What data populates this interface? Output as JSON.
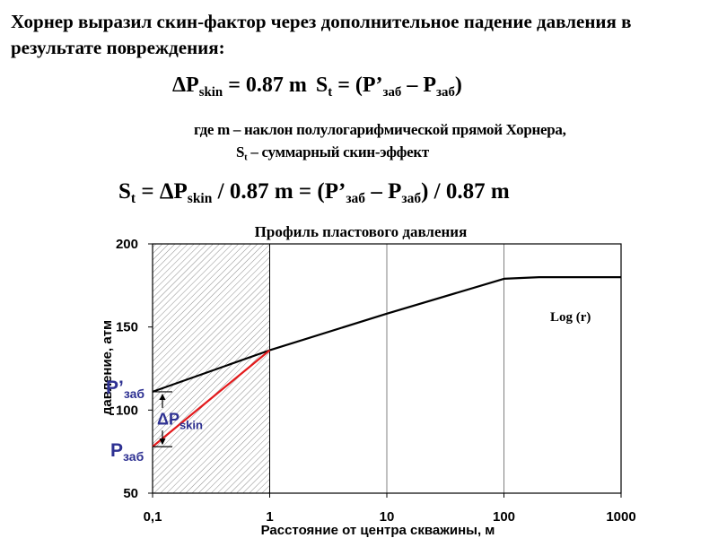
{
  "text": {
    "intro": "Хорнер выразил скин-фактор через дополнительное падение давления в результате повреждения:",
    "eq1": {
      "a": "ΔP",
      "a_sub": "skin",
      "b": " = 0.87 m",
      "c": "S",
      "c_sub": "t",
      "d": " = (P’",
      "d_sub": "заб",
      "e": " – P",
      "e_sub": "заб",
      "f": ")"
    },
    "where": {
      "line1": "где   m – наклон полулогарифмической прямой Хорнера,",
      "line2_s": "S",
      "line2_sub": "t",
      "line2_rest": " – суммарный скин-эффект"
    },
    "eq2": {
      "a": "S",
      "a_sub": "t",
      "b": " = ΔP",
      "b_sub": "skin",
      "c": " / 0.87 m = (P’",
      "c_sub": "заб",
      "d": " – P",
      "d_sub": "заб",
      "e": ") / 0.87 m"
    }
  },
  "chart_data": {
    "type": "line",
    "title": "Профиль пластового давления",
    "xlabel": "Расстояние от центра скважины, м",
    "ylabel": "давление, атм",
    "x_scale": "log",
    "xlim": [
      0.1,
      1000
    ],
    "ylim": [
      50,
      200
    ],
    "x_ticks": [
      0.1,
      1,
      10,
      100,
      1000
    ],
    "x_tick_labels": [
      "0,1",
      "1",
      "10",
      "100",
      "1000"
    ],
    "y_ticks": [
      50,
      100,
      150,
      200
    ],
    "y_tick_labels": [
      "50",
      "100",
      "150",
      "200"
    ],
    "grid": "vertical lines at 1, 10, 100",
    "annotation": "Log (r)",
    "shaded_region_x": [
      0.1,
      1
    ],
    "series": [
      {
        "color": "#000000",
        "x": [
          0.1,
          1,
          10,
          100,
          200,
          1000
        ],
        "y": [
          111,
          136,
          158,
          179,
          180,
          180
        ]
      },
      {
        "color": "#e31a1c",
        "x": [
          0.1,
          1
        ],
        "y": [
          78,
          136
        ]
      }
    ],
    "markers": {
      "p_prime": {
        "label": "P’",
        "sub": "заб",
        "y": 111
      },
      "p": {
        "label": "P",
        "sub": "заб",
        "y": 78
      },
      "delta": {
        "label": "ΔP",
        "sub": "skin"
      }
    },
    "colors": {
      "label_blue": "#2e3192",
      "red_line": "#e31a1c"
    }
  }
}
